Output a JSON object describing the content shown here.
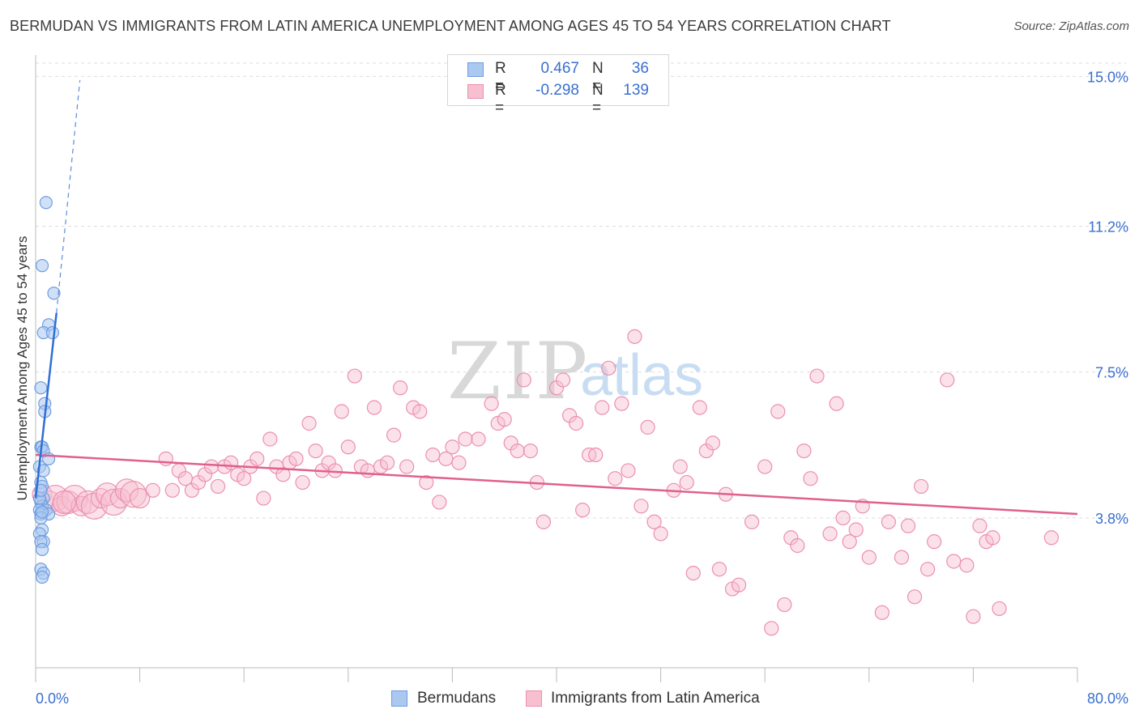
{
  "header": {
    "title": "BERMUDAN VS IMMIGRANTS FROM LATIN AMERICA UNEMPLOYMENT AMONG AGES 45 TO 54 YEARS CORRELATION CHART",
    "source": "Source: ZipAtlas.com"
  },
  "legend": {
    "rows": [
      {
        "r_label": "R =",
        "r_value": "0.467",
        "n_label": "N =",
        "n_value": "36"
      },
      {
        "r_label": "R =",
        "r_value": "-0.298",
        "n_label": "N =",
        "n_value": "139"
      }
    ]
  },
  "bottom_legend": {
    "series1": "Bermudans",
    "series2": "Immigrants from Latin America"
  },
  "watermark": {
    "zip": "ZIP",
    "atlas": "atlas"
  },
  "colors": {
    "blue_fill": "#aac8f0",
    "blue_stroke": "#6f9de0",
    "blue_line": "#2f6fd6",
    "pink_fill": "#f7bfd0",
    "pink_stroke": "#ec8fae",
    "pink_line": "#e0608e",
    "axis_label": "#3a6fd0",
    "grid": "#dddddd"
  },
  "chart_data": {
    "type": "scatter",
    "title": "BERMUDAN VS IMMIGRANTS FROM LATIN AMERICA UNEMPLOYMENT AMONG AGES 45 TO 54 YEARS CORRELATION CHART",
    "xlabel": "",
    "ylabel": "Unemployment Among Ages 45 to 54 years",
    "xlim": [
      0,
      80
    ],
    "ylim": [
      0,
      15.5
    ],
    "x_tick_labels": [
      "0.0%",
      "80.0%"
    ],
    "y_ticks": [
      3.8,
      7.5,
      11.2,
      15.0
    ],
    "y_tick_labels": [
      "3.8%",
      "7.5%",
      "11.2%",
      "15.0%"
    ],
    "grid": true,
    "legend_position": "top-center",
    "series": [
      {
        "name": "Bermudans",
        "r": 0.467,
        "n": 36,
        "trend": {
          "x0": 0.0,
          "y0": 4.3,
          "x1": 1.6,
          "y1": 9.0
        },
        "trend_dashed_extension": {
          "x0": 1.6,
          "y0": 9.0,
          "x1": 3.4,
          "y1": 14.9
        },
        "points": [
          [
            0.8,
            11.8
          ],
          [
            0.5,
            10.2
          ],
          [
            1.4,
            9.5
          ],
          [
            1.0,
            8.7
          ],
          [
            0.6,
            8.5
          ],
          [
            1.3,
            8.5
          ],
          [
            0.4,
            7.1
          ],
          [
            0.7,
            6.7
          ],
          [
            0.7,
            6.5
          ],
          [
            0.4,
            5.6
          ],
          [
            0.5,
            5.6
          ],
          [
            0.6,
            5.5
          ],
          [
            1.0,
            5.3
          ],
          [
            0.3,
            5.1
          ],
          [
            0.4,
            4.7
          ],
          [
            0.5,
            4.6
          ],
          [
            0.6,
            4.3
          ],
          [
            0.4,
            4.2
          ],
          [
            0.5,
            4.1
          ],
          [
            0.8,
            4.0
          ],
          [
            0.3,
            4.0
          ],
          [
            0.4,
            3.9
          ],
          [
            1.0,
            3.9
          ],
          [
            0.4,
            3.8
          ],
          [
            0.5,
            3.5
          ],
          [
            0.3,
            3.4
          ],
          [
            0.6,
            3.2
          ],
          [
            0.4,
            3.2
          ],
          [
            0.5,
            3.0
          ],
          [
            0.4,
            2.5
          ],
          [
            0.6,
            2.4
          ],
          [
            0.5,
            2.3
          ],
          [
            0.3,
            4.3
          ],
          [
            0.5,
            3.95
          ],
          [
            0.4,
            4.5
          ],
          [
            0.6,
            5.0
          ]
        ]
      },
      {
        "name": "Immigrants from Latin America",
        "r": -0.298,
        "n": 139,
        "trend": {
          "x0": 0.0,
          "y0": 5.4,
          "x1": 80.0,
          "y1": 3.9
        },
        "points": [
          [
            0.5,
            4.4
          ],
          [
            1.0,
            4.2
          ],
          [
            1.5,
            4.3
          ],
          [
            2.0,
            4.1
          ],
          [
            2.5,
            4.2
          ],
          [
            3.0,
            4.3
          ],
          [
            3.5,
            4.1
          ],
          [
            4.0,
            4.2
          ],
          [
            4.5,
            4.1
          ],
          [
            5.0,
            4.3
          ],
          [
            5.5,
            4.4
          ],
          [
            6.0,
            4.2
          ],
          [
            6.5,
            4.3
          ],
          [
            7.0,
            4.5
          ],
          [
            7.5,
            4.4
          ],
          [
            8.0,
            4.3
          ],
          [
            9.0,
            4.5
          ],
          [
            10.0,
            5.3
          ],
          [
            10.5,
            4.5
          ],
          [
            11.0,
            5.0
          ],
          [
            11.5,
            4.8
          ],
          [
            12.0,
            4.5
          ],
          [
            12.5,
            4.7
          ],
          [
            13.0,
            4.9
          ],
          [
            13.5,
            5.1
          ],
          [
            14.0,
            4.6
          ],
          [
            14.5,
            5.1
          ],
          [
            15.0,
            5.2
          ],
          [
            15.5,
            4.9
          ],
          [
            16.0,
            4.8
          ],
          [
            16.5,
            5.1
          ],
          [
            17.0,
            5.3
          ],
          [
            17.5,
            4.3
          ],
          [
            18.0,
            5.8
          ],
          [
            18.5,
            5.1
          ],
          [
            19.0,
            4.9
          ],
          [
            19.5,
            5.2
          ],
          [
            20.0,
            5.3
          ],
          [
            20.5,
            4.7
          ],
          [
            21.0,
            6.2
          ],
          [
            21.5,
            5.5
          ],
          [
            22.0,
            5.0
          ],
          [
            22.5,
            5.2
          ],
          [
            23.0,
            5.0
          ],
          [
            23.5,
            6.5
          ],
          [
            24.0,
            5.6
          ],
          [
            24.5,
            7.4
          ],
          [
            25.0,
            5.1
          ],
          [
            25.5,
            5.0
          ],
          [
            26.0,
            6.6
          ],
          [
            26.5,
            5.1
          ],
          [
            27.0,
            5.2
          ],
          [
            27.5,
            5.9
          ],
          [
            28.0,
            7.1
          ],
          [
            28.5,
            5.1
          ],
          [
            29.0,
            6.6
          ],
          [
            29.5,
            6.5
          ],
          [
            30.0,
            4.7
          ],
          [
            30.5,
            5.4
          ],
          [
            31.0,
            4.2
          ],
          [
            31.5,
            5.3
          ],
          [
            32.0,
            5.6
          ],
          [
            32.5,
            5.2
          ],
          [
            33.0,
            5.8
          ],
          [
            34.0,
            5.8
          ],
          [
            35.0,
            6.7
          ],
          [
            35.5,
            6.2
          ],
          [
            36.0,
            6.3
          ],
          [
            36.5,
            5.7
          ],
          [
            37.0,
            5.5
          ],
          [
            37.5,
            7.3
          ],
          [
            38.0,
            5.5
          ],
          [
            38.5,
            4.7
          ],
          [
            39.0,
            3.7
          ],
          [
            40.0,
            7.1
          ],
          [
            40.5,
            7.3
          ],
          [
            41.0,
            6.4
          ],
          [
            41.5,
            6.2
          ],
          [
            42.0,
            4.0
          ],
          [
            42.5,
            5.4
          ],
          [
            43.0,
            5.4
          ],
          [
            43.5,
            6.6
          ],
          [
            44.0,
            7.6
          ],
          [
            44.5,
            4.8
          ],
          [
            45.0,
            6.7
          ],
          [
            45.5,
            5.0
          ],
          [
            46.0,
            8.4
          ],
          [
            46.5,
            4.1
          ],
          [
            47.0,
            6.1
          ],
          [
            47.5,
            3.7
          ],
          [
            48.0,
            3.4
          ],
          [
            49.0,
            4.5
          ],
          [
            49.5,
            5.1
          ],
          [
            50.0,
            4.7
          ],
          [
            50.5,
            2.4
          ],
          [
            51.0,
            6.6
          ],
          [
            51.5,
            5.5
          ],
          [
            52.0,
            5.7
          ],
          [
            52.5,
            2.5
          ],
          [
            53.0,
            4.4
          ],
          [
            53.5,
            2.0
          ],
          [
            54.0,
            2.1
          ],
          [
            55.0,
            3.7
          ],
          [
            56.0,
            5.1
          ],
          [
            56.5,
            1.0
          ],
          [
            57.0,
            6.5
          ],
          [
            57.5,
            1.6
          ],
          [
            58.0,
            3.3
          ],
          [
            58.5,
            3.1
          ],
          [
            59.0,
            5.5
          ],
          [
            59.5,
            4.8
          ],
          [
            60.0,
            7.4
          ],
          [
            61.0,
            3.4
          ],
          [
            61.5,
            6.7
          ],
          [
            62.0,
            3.8
          ],
          [
            62.5,
            3.2
          ],
          [
            63.0,
            3.5
          ],
          [
            63.5,
            4.1
          ],
          [
            64.0,
            2.8
          ],
          [
            65.0,
            1.4
          ],
          [
            65.5,
            3.7
          ],
          [
            66.5,
            2.8
          ],
          [
            67.0,
            3.6
          ],
          [
            67.5,
            1.8
          ],
          [
            68.0,
            4.6
          ],
          [
            68.5,
            2.5
          ],
          [
            69.0,
            3.2
          ],
          [
            70.0,
            7.3
          ],
          [
            70.5,
            2.7
          ],
          [
            71.5,
            2.6
          ],
          [
            72.0,
            1.3
          ],
          [
            72.5,
            3.6
          ],
          [
            73.0,
            3.2
          ],
          [
            73.5,
            3.3
          ],
          [
            74.0,
            1.5
          ],
          [
            78.0,
            3.3
          ],
          [
            2.2,
            4.2
          ]
        ]
      }
    ]
  }
}
